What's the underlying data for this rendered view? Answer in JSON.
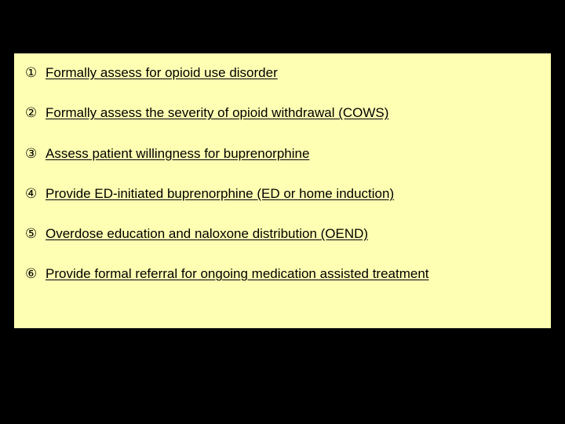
{
  "slide": {
    "background_color": "#000000",
    "content_background_color": "#ffffb3",
    "text_color": "#000000",
    "font_size_pt": 17,
    "underline": true,
    "items": [
      {
        "marker": "①",
        "text": "Formally assess for opioid use disorder"
      },
      {
        "marker": "②",
        "text": " Formally assess the severity of opioid withdrawal (COWS)"
      },
      {
        "marker": "③",
        "text": "Assess patient willingness for buprenorphine"
      },
      {
        "marker": "④",
        "text": " Provide ED-initiated buprenorphine (ED or home induction)"
      },
      {
        "marker": "⑤",
        "text": "Overdose education and naloxone distribution (OEND)"
      },
      {
        "marker": "⑥",
        "text": " Provide formal referral for ongoing medication assisted treatment"
      }
    ]
  }
}
